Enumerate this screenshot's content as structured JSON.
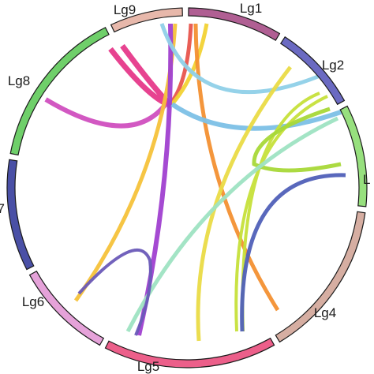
{
  "diagram": {
    "type": "chord",
    "segments": [
      {
        "label": "Lg1",
        "color": "#b05f93"
      },
      {
        "label": "Lg2",
        "color": "#6b6ac2"
      },
      {
        "label": "L",
        "color": "#97e07e"
      },
      {
        "label": "Lg4",
        "color": "#d6aea2"
      },
      {
        "label": "Lg5",
        "color": "#ec5f8a"
      },
      {
        "label": "Lg6",
        "color": "#e5a2d9"
      },
      {
        "label": "7",
        "color": "#4a50a6"
      },
      {
        "label": "Lg8",
        "color": "#6fcf6a"
      },
      {
        "label": "Lg9",
        "color": "#e7b8ab"
      }
    ],
    "links": [
      {
        "color": "#e6398a",
        "name": "link-lg9-thick-magenta"
      },
      {
        "color": "#e8554d",
        "name": "link-lg9-red"
      },
      {
        "color": "#d04fbf",
        "name": "link-lg8-pink"
      },
      {
        "color": "#f2d234",
        "name": "link-lg9-yellow-short"
      },
      {
        "color": "#f39032",
        "name": "link-lg9-orange"
      },
      {
        "color": "#f5c23a",
        "name": "link-lg9-lg6-yellow"
      },
      {
        "color": "#a040d0",
        "name": "link-lg9-lg5-purple"
      },
      {
        "color": "#8fd0e8",
        "name": "link-lg9-lg2-lightblue"
      },
      {
        "color": "#7cc0e6",
        "name": "link-lg9-L-blue"
      },
      {
        "color": "#eadb46",
        "name": "link-lg2-lg5-yellow"
      },
      {
        "color": "#c6e03a",
        "name": "link-lg2-lg4-lime"
      },
      {
        "color": "#a8d838",
        "name": "link-L-green-loop"
      },
      {
        "color": "#5060b8",
        "name": "link-L-lg4-blue"
      },
      {
        "color": "#9ee3c2",
        "name": "link-L-lg5-mint"
      },
      {
        "color": "#6a5ab8",
        "name": "link-lg5-lg6-indigo"
      }
    ]
  }
}
